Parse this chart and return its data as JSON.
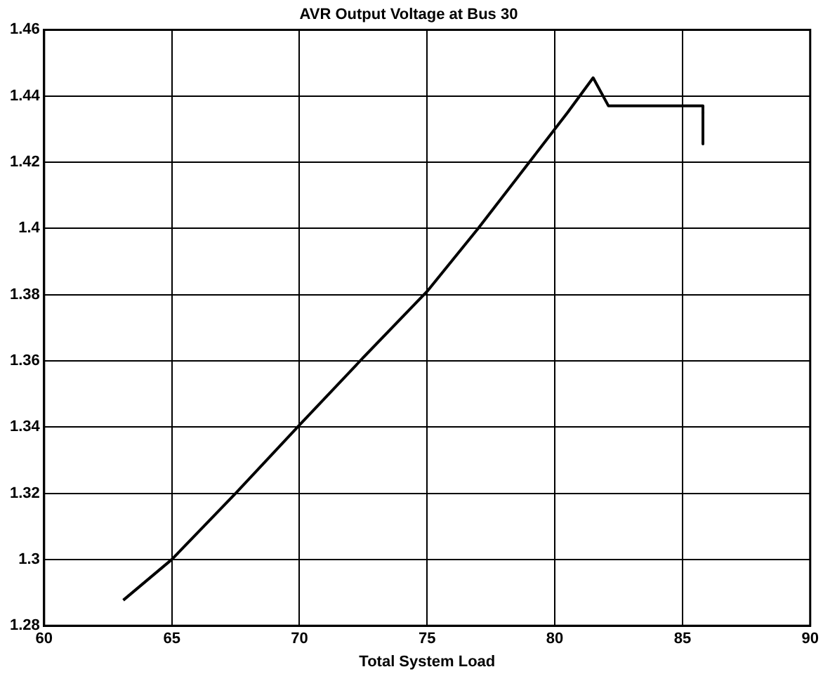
{
  "chart_data": {
    "type": "line",
    "title": "AVR Output Voltage at Bus 30",
    "xlabel": "Total System Load",
    "x": [
      63.1,
      65,
      67.5,
      70,
      72.5,
      75,
      77,
      79,
      80.5,
      81.5,
      82.1,
      85.8,
      85.8
    ],
    "series": [
      {
        "color": "#000000",
        "values": [
          1.2877,
          1.3,
          1.32,
          1.3406,
          1.361,
          1.381,
          1.4,
          1.42,
          1.435,
          1.4455,
          1.437,
          1.437,
          1.4255
        ]
      }
    ],
    "xlim": [
      60,
      90
    ],
    "xticks": [
      60,
      65,
      70,
      75,
      80,
      85,
      90
    ],
    "ylim": [
      1.28,
      1.46
    ],
    "yticks": [
      1.28,
      1.3,
      1.32,
      1.34,
      1.36,
      1.38,
      1.4,
      1.42,
      1.44,
      1.46
    ],
    "grid": true,
    "legend": false,
    "marker": "none",
    "line_style": "solid"
  }
}
